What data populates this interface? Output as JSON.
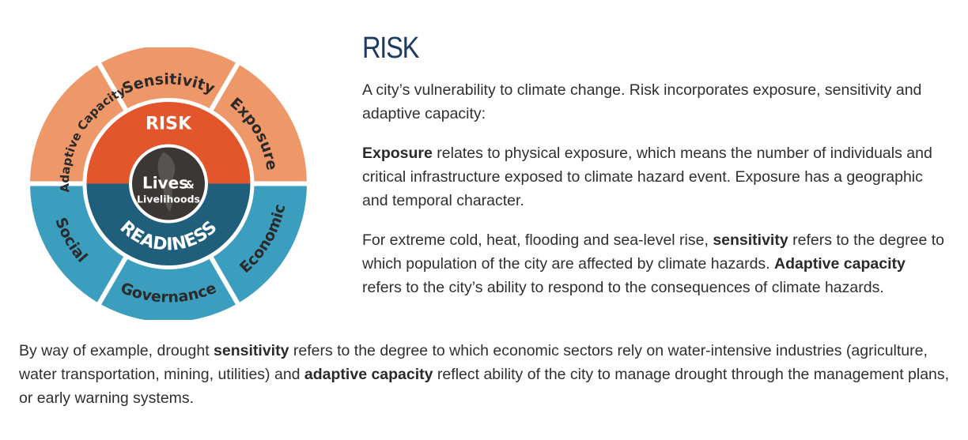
{
  "diagram": {
    "outer_top": [
      "Adaptive Capacity",
      "Sensitivity",
      "Exposure"
    ],
    "outer_bottom": [
      "Economic",
      "Governance",
      "Social"
    ],
    "ring_top": "RISK",
    "ring_bottom": "READINESS",
    "center_line1": "Lives",
    "center_amp": "&",
    "center_line2": "Livelihoods",
    "colors": {
      "outer_orange": "#EE9768",
      "inner_orange": "#E3562B",
      "outer_blue": "#3C9EBE",
      "inner_blue": "#1F5F7C",
      "center": "#3A3735"
    }
  },
  "heading": "RISK",
  "p1": "A city’s vulnerability to climate change. Risk incorporates exposure, sensitivity and adaptive capacity:",
  "p2": {
    "bold": "Exposure",
    "text": " relates to physical exposure, which means the number of individuals and critical infrastructure  exposed to climate hazard event. Exposure has a geographic and temporal character."
  },
  "p3": {
    "t1": "For extreme cold, heat, flooding and sea-level rise, ",
    "b1": "sensitivity",
    "t2": " refers to the degree to which population of the city are affected by climate hazards. ",
    "b2": "Adaptive capacity",
    "t3": " refers to the city’s ability to respond to the consequences of climate hazards."
  },
  "p4": {
    "t1": "By way of example, drought ",
    "b1": "sensitivity",
    "t2": " refers to the degree to which economic sectors rely on water-intensive industries (agriculture, water transportation, mining, utilities) and ",
    "b2": "adaptive capacity",
    "t3": " reflect ability of the city to manage drought through the management plans, or early warning systems."
  }
}
